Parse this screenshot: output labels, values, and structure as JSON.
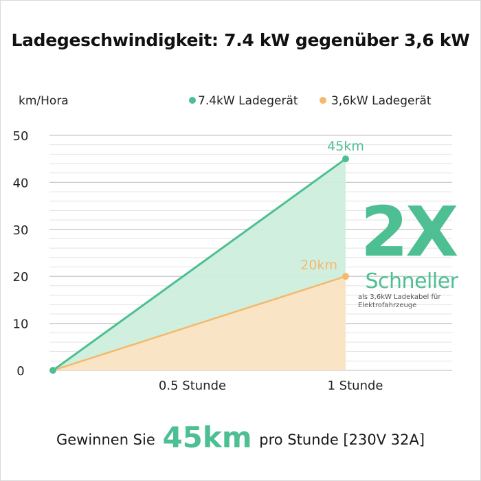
{
  "colors": {
    "fast": "#4dbf93",
    "fast_fill": "#cdeedd",
    "slow": "#f6b86a",
    "slow_fill": "#fde2c3",
    "grid": "#e2e2e2",
    "grid_major": "#c8c8c8",
    "text": "#222222"
  },
  "chart_data": {
    "type": "area",
    "title": "Ladegeschwindigkeit: 7.4 kW gegenüber 3,6 kW",
    "ylabel": "km/Hora",
    "xlabel": "",
    "x": [
      0,
      0.5,
      1
    ],
    "x_tick_labels": [
      "0.5 Stunde",
      "1 Stunde"
    ],
    "ylim": [
      0,
      50
    ],
    "y_ticks": [
      0,
      10,
      20,
      30,
      40,
      50
    ],
    "grid": true,
    "legend_position": "top-right",
    "series": [
      {
        "name": "7.4kW Ladegerät",
        "values": [
          0,
          22.5,
          45
        ],
        "end_label": "45km"
      },
      {
        "name": "3,6kW Ladegerät",
        "values": [
          0,
          10,
          20
        ],
        "end_label": "20km"
      }
    ],
    "annotation": {
      "big": "2X",
      "word": "Schneller",
      "sub_line1": "als 3,6kW Ladekabel für",
      "sub_line2": "Elektrofahrzeuge"
    }
  },
  "footer": {
    "pre": "Gewinnen Sie",
    "value": "45km",
    "post": "pro Stunde [230V 32A]"
  }
}
